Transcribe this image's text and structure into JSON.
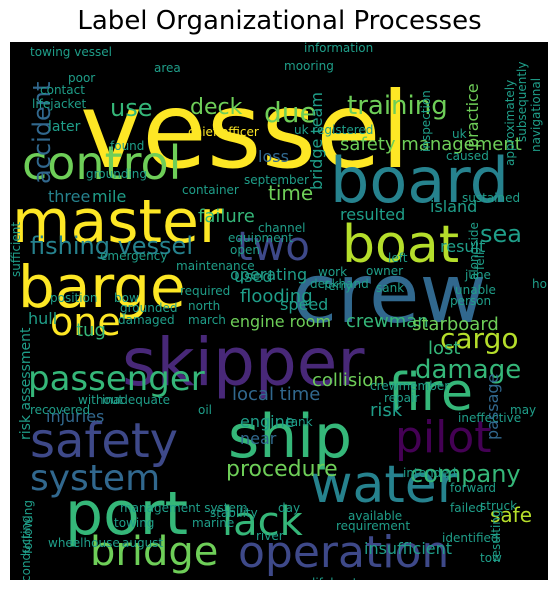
{
  "title": "Label Organizational Processes",
  "palette": {
    "yellow": "#fde725",
    "lime": "#b5de2b",
    "green": "#6ece58",
    "teal_green": "#35b779",
    "teal": "#1f9e89",
    "blue_teal": "#26828e",
    "blue": "#31688e",
    "indigo": "#3e4989",
    "purple": "#482878",
    "dark_purple": "#440154"
  },
  "words": [
    "vessel",
    "crew",
    "board",
    "master",
    "barge",
    "boat",
    "skipper",
    "ship",
    "control",
    "port",
    "water",
    "safety",
    "fire",
    "passenger",
    "operation",
    "system",
    "pilot",
    "two",
    "one",
    "bridge",
    "lack",
    "fishing vessel",
    "training",
    "deck",
    "due",
    "use",
    "accident",
    "cargo",
    "damage",
    "procedure",
    "time",
    "sea",
    "safety management",
    "company",
    "bridge team",
    "three",
    "mile",
    "failure",
    "loss",
    "resulted",
    "island",
    "result",
    "operating",
    "flooding",
    "engine room",
    "crewman",
    "starboard",
    "lost",
    "tug",
    "hull",
    "speed",
    "local time",
    "collision",
    "risk",
    "engine",
    "injuries",
    "near",
    "insufficient",
    "risk assessment",
    "management system",
    "wheelhouse",
    "lifeboat",
    "river",
    "tow",
    "marine",
    "towing",
    "august",
    "required",
    "grounded",
    "damaged",
    "north",
    "march",
    "ferry",
    "owner",
    "sank",
    "person",
    "unable",
    "june",
    "repair",
    "crewmember",
    "ineffective",
    "may",
    "intended",
    "forward",
    "failed",
    "struck",
    "safe",
    "passage",
    "available",
    "requirement",
    "identified",
    "resulting",
    "stability",
    "day",
    "oil",
    "tank",
    "inadequate",
    "without",
    "recovered",
    "position",
    "bow",
    "emergency",
    "maintenance",
    "work",
    "deckhand",
    "left",
    "alongside",
    "sustained",
    "hour",
    "used",
    "open",
    "equipment",
    "channel",
    "container",
    "grounding",
    "september",
    "chief officer",
    "uk registered",
    "uk",
    "inspection",
    "caused",
    "fell",
    "practice",
    "approximately",
    "subsequently",
    "navigational",
    "information",
    "mooring",
    "area",
    "towing vessel",
    "poor",
    "contact",
    "lifejacket",
    "later",
    "found",
    "following",
    "conducting",
    "sufficient"
  ]
}
